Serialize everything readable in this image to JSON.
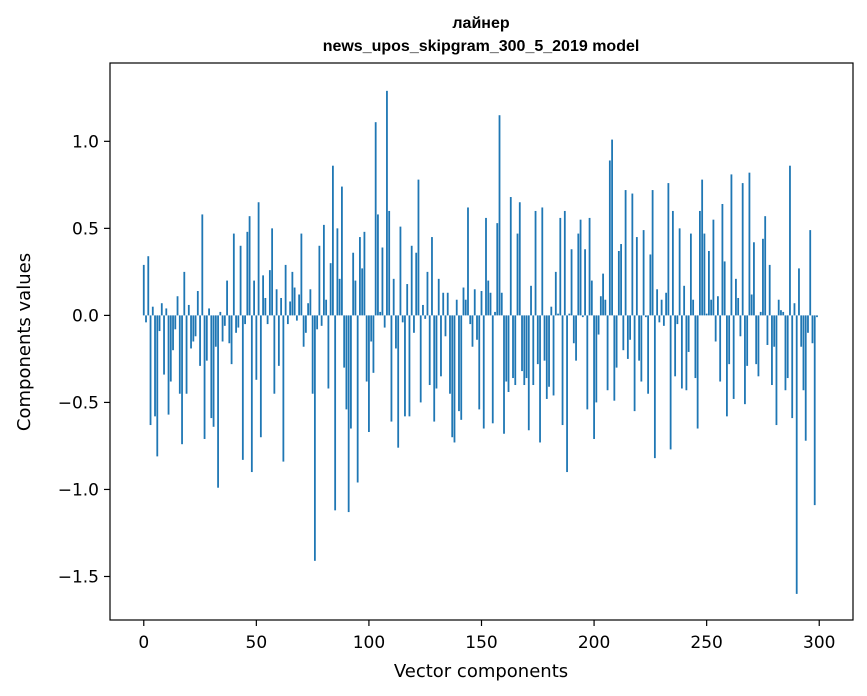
{
  "chart_data": {
    "type": "bar",
    "title_line1": "лайнер",
    "title_line2": "news_upos_skipgram_300_5_2019 model",
    "xlabel": "Vector components",
    "ylabel": "Components values",
    "xlim": [
      -15,
      315
    ],
    "ylim": [
      -1.75,
      1.45
    ],
    "xticks": [
      0,
      50,
      100,
      150,
      200,
      250,
      300
    ],
    "xtick_labels": [
      "0",
      "50",
      "100",
      "150",
      "200",
      "250",
      "300"
    ],
    "yticks": [
      -1.5,
      -1.0,
      -0.5,
      0.0,
      0.5,
      1.0
    ],
    "ytick_labels": [
      "−1.5",
      "−1.0",
      "−0.5",
      "0.0",
      "0.5",
      "1.0"
    ],
    "bar_color": "#1f77b4",
    "values": [
      0.29,
      -0.04,
      0.34,
      -0.63,
      0.05,
      -0.58,
      -0.81,
      -0.09,
      0.07,
      -0.34,
      0.04,
      -0.57,
      -0.38,
      -0.2,
      -0.08,
      0.11,
      -0.45,
      -0.74,
      0.25,
      -0.45,
      0.06,
      -0.19,
      -0.15,
      -0.12,
      0.14,
      -0.29,
      0.58,
      -0.71,
      -0.26,
      0.04,
      -0.59,
      -0.64,
      -0.18,
      -0.99,
      0.02,
      -0.15,
      -0.06,
      0.2,
      -0.16,
      -0.28,
      0.47,
      -0.1,
      -0.07,
      0.4,
      -0.83,
      -0.05,
      0.48,
      0.57,
      -0.9,
      0.2,
      -0.37,
      0.65,
      -0.7,
      0.23,
      0.1,
      -0.05,
      0.26,
      0.5,
      -0.45,
      0.15,
      -0.29,
      0.1,
      -0.84,
      0.29,
      -0.05,
      0.08,
      0.25,
      0.16,
      -0.03,
      0.12,
      0.47,
      -0.18,
      -0.1,
      0.07,
      0.15,
      -0.45,
      -1.41,
      -0.08,
      0.4,
      -0.06,
      0.52,
      0.09,
      -0.42,
      0.3,
      0.86,
      -1.12,
      0.5,
      0.21,
      0.74,
      -0.3,
      -0.54,
      -1.13,
      -0.65,
      0.36,
      0.2,
      -0.96,
      0.45,
      0.27,
      0.48,
      -0.38,
      -0.67,
      -0.15,
      -0.33,
      1.11,
      0.58,
      0.02,
      0.39,
      -0.07,
      1.29,
      0.6,
      -0.61,
      0.21,
      -0.19,
      -0.76,
      0.51,
      -0.04,
      -0.58,
      0.18,
      -0.58,
      0.4,
      -0.1,
      0.36,
      0.78,
      -0.5,
      0.06,
      -0.02,
      0.25,
      -0.4,
      0.45,
      -0.61,
      -0.42,
      0.21,
      -0.35,
      0.13,
      -0.12,
      0.13,
      -0.45,
      -0.7,
      -0.73,
      0.09,
      -0.55,
      -0.6,
      0.16,
      0.09,
      0.62,
      -0.05,
      -0.18,
      0.15,
      -0.14,
      -0.54,
      0.14,
      -0.65,
      0.56,
      0.2,
      0.13,
      -0.62,
      0.02,
      0.53,
      1.15,
      0.13,
      -0.68,
      -0.38,
      -0.44,
      0.68,
      -0.36,
      -0.4,
      0.47,
      0.65,
      -0.32,
      -0.4,
      -0.36,
      -0.66,
      0.17,
      -0.4,
      0.6,
      -0.28,
      -0.73,
      0.62,
      -0.26,
      -0.48,
      -0.41,
      0.05,
      -0.46,
      0.25,
      0.01,
      0.56,
      -0.63,
      0.6,
      -0.9,
      0.01,
      0.38,
      -0.16,
      -0.26,
      0.47,
      0.55,
      -0.01,
      0.38,
      -0.54,
      0.56,
      0.2,
      -0.71,
      -0.5,
      -0.11,
      0.11,
      0.24,
      0.09,
      -0.43,
      0.89,
      1.01,
      -0.49,
      -0.3,
      0.37,
      0.41,
      -0.2,
      0.72,
      -0.25,
      -0.14,
      0.7,
      -0.55,
      0.45,
      -0.26,
      -0.38,
      0.49,
      -0.01,
      -0.45,
      0.35,
      0.72,
      -0.82,
      0.15,
      -0.04,
      0.09,
      -0.06,
      0.13,
      0.76,
      -0.77,
      0.6,
      -0.35,
      -0.05,
      0.5,
      -0.42,
      0.17,
      -0.43,
      -0.21,
      0.47,
      0.09,
      -0.36,
      -0.65,
      0.6,
      0.78,
      0.47,
      0.01,
      0.37,
      0.09,
      0.55,
      -0.15,
      0.11,
      -0.38,
      0.64,
      0.31,
      -0.58,
      -0.28,
      0.81,
      -0.48,
      0.21,
      0.1,
      -0.12,
      0.76,
      -0.51,
      -0.29,
      0.82,
      0.12,
      0.42,
      -0.28,
      -0.35,
      0.02,
      0.44,
      0.57,
      -0.17,
      0.29,
      -0.4,
      -0.18,
      -0.63,
      0.09,
      0.03,
      0.02,
      -0.43,
      -0.36,
      0.86,
      -0.59,
      0.07,
      -1.6,
      0.27,
      -0.18,
      -0.43,
      -0.72,
      -0.1,
      0.49,
      -0.16,
      -1.09,
      -0.01
    ]
  }
}
